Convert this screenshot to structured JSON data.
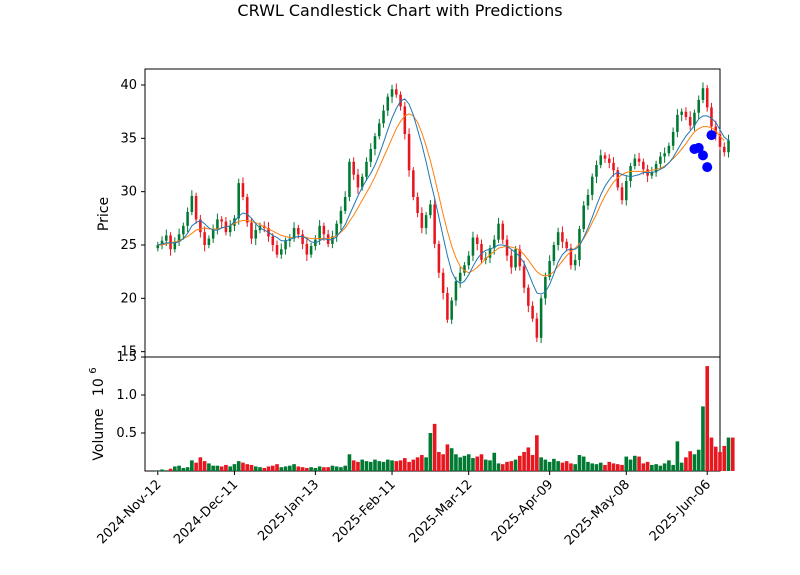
{
  "chart_data": {
    "type": "candlestick",
    "title": "CRWL Candlestick Chart with Predictions",
    "price_panel": {
      "ylabel": "Price",
      "ylim": [
        14.5,
        41.5
      ],
      "yticks": [
        15,
        20,
        25,
        30,
        35,
        40
      ],
      "up_color": "#007a33",
      "down_color": "#e8161e",
      "ma_short_color": "#1f77b4",
      "ma_long_color": "#ff7f0e",
      "prediction_color": "#0000ff"
    },
    "volume_panel": {
      "ylabel": "Volume",
      "multiplier_label": "10",
      "multiplier_exp": "6",
      "ylim": [
        0,
        1.5
      ],
      "yticks": [
        "0.5",
        "1.0",
        "1.5"
      ],
      "ytick_values": [
        0.5,
        1.0,
        1.5
      ]
    },
    "xlim": [
      -3,
      132
    ],
    "xticks": [
      {
        "label": "2024-Nov-12",
        "index": 0
      },
      {
        "label": "2024-Dec-11",
        "index": 18
      },
      {
        "label": "2025-Jan-13",
        "index": 37
      },
      {
        "label": "2025-Feb-11",
        "index": 55
      },
      {
        "label": "2025-Mar-12",
        "index": 73
      },
      {
        "label": "2025-Apr-09",
        "index": 92
      },
      {
        "label": "2025-May-08",
        "index": 110
      },
      {
        "label": "2025-Jun-06",
        "index": 129
      }
    ],
    "closes": [
      25.0,
      25.4,
      25.9,
      24.6,
      25.3,
      26.0,
      26.8,
      28.1,
      29.6,
      27.4,
      26.2,
      25.0,
      25.6,
      26.5,
      27.4,
      27.2,
      26.2,
      26.8,
      27.5,
      30.8,
      29.5,
      27.1,
      25.6,
      26.4,
      26.8,
      26.6,
      25.8,
      25.0,
      24.1,
      24.6,
      25.4,
      25.6,
      26.6,
      26.0,
      25.1,
      24.1,
      24.9,
      25.5,
      26.8,
      26.0,
      25.1,
      25.8,
      27.0,
      28.2,
      29.5,
      32.8,
      31.6,
      30.4,
      31.4,
      32.8,
      34.0,
      35.2,
      36.4,
      37.6,
      38.9,
      39.6,
      39.1,
      38.0,
      35.4,
      32.0,
      29.5,
      28.0,
      26.6,
      27.8,
      28.8,
      25.1,
      22.4,
      20.5,
      18.0,
      19.8,
      21.6,
      22.4,
      23.1,
      24.0,
      25.7,
      25.1,
      23.6,
      23.8,
      24.7,
      25.5,
      27.0,
      25.5,
      24.0,
      22.9,
      24.6,
      23.0,
      21.0,
      19.3,
      18.1,
      16.3,
      20.0,
      22.0,
      23.5,
      25.0,
      26.2,
      25.3,
      24.7,
      23.1,
      23.6,
      26.5,
      28.7,
      29.7,
      31.4,
      32.5,
      33.4,
      33.1,
      32.7,
      32.0,
      30.4,
      29.2,
      31.0,
      32.4,
      33.1,
      32.8,
      32.1,
      31.5,
      31.8,
      32.6,
      33.3,
      33.6,
      34.3,
      35.6,
      37.2,
      37.5,
      37.0,
      36.2,
      37.4,
      38.6,
      39.7,
      37.9,
      36.1,
      35.4,
      34.2,
      33.7,
      34.8
    ],
    "volumes": [
      0.0,
      0.02,
      0.01,
      0.03,
      0.06,
      0.07,
      0.04,
      0.05,
      0.14,
      0.11,
      0.18,
      0.13,
      0.1,
      0.07,
      0.07,
      0.06,
      0.08,
      0.06,
      0.09,
      0.13,
      0.11,
      0.09,
      0.08,
      0.06,
      0.05,
      0.04,
      0.06,
      0.07,
      0.09,
      0.05,
      0.06,
      0.07,
      0.09,
      0.06,
      0.05,
      0.04,
      0.05,
      0.04,
      0.06,
      0.05,
      0.05,
      0.07,
      0.06,
      0.05,
      0.07,
      0.22,
      0.14,
      0.12,
      0.15,
      0.13,
      0.12,
      0.15,
      0.13,
      0.12,
      0.15,
      0.14,
      0.13,
      0.14,
      0.17,
      0.12,
      0.15,
      0.18,
      0.21,
      0.18,
      0.5,
      0.62,
      0.25,
      0.22,
      0.35,
      0.3,
      0.22,
      0.18,
      0.2,
      0.22,
      0.17,
      0.19,
      0.22,
      0.15,
      0.14,
      0.24,
      0.1,
      0.09,
      0.12,
      0.13,
      0.15,
      0.2,
      0.25,
      0.31,
      0.21,
      0.47,
      0.18,
      0.15,
      0.12,
      0.16,
      0.13,
      0.11,
      0.13,
      0.1,
      0.09,
      0.21,
      0.19,
      0.12,
      0.1,
      0.09,
      0.11,
      0.08,
      0.12,
      0.1,
      0.09,
      0.08,
      0.19,
      0.15,
      0.2,
      0.19,
      0.1,
      0.12,
      0.08,
      0.09,
      0.07,
      0.1,
      0.14,
      0.08,
      0.39,
      0.11,
      0.18,
      0.26,
      0.22,
      0.28,
      0.85,
      1.38,
      0.44,
      0.32,
      0.25,
      0.33,
      0.44,
      0.44
    ],
    "ma_short": [
      25.0,
      25.1,
      25.2,
      25.2,
      25.2,
      25.3,
      25.6,
      26.1,
      26.8,
      27.1,
      27.3,
      27.0,
      26.6,
      26.4,
      26.4,
      26.6,
      26.7,
      26.8,
      27.2,
      27.7,
      28.0,
      27.9,
      27.5,
      27.0,
      26.6,
      26.4,
      26.2,
      25.9,
      25.7,
      25.4,
      25.4,
      25.5,
      25.7,
      25.8,
      25.8,
      25.6,
      25.3,
      25.2,
      25.4,
      25.6,
      25.5,
      25.5,
      25.8,
      26.3,
      26.9,
      27.8,
      28.7,
      29.6,
      30.4,
      31.1,
      31.7,
      32.5,
      33.5,
      34.6,
      35.8,
      36.9,
      37.8,
      38.5,
      38.7,
      38.2,
      37.2,
      35.8,
      34.4,
      32.8,
      31.0,
      29.4,
      27.6,
      25.8,
      24.0,
      22.5,
      21.7,
      21.4,
      21.6,
      22.2,
      23.0,
      23.7,
      24.2,
      24.5,
      24.6,
      24.8,
      25.0,
      25.0,
      24.9,
      24.6,
      24.3,
      23.9,
      23.3,
      22.4,
      21.4,
      20.5,
      20.4,
      20.6,
      21.3,
      22.3,
      23.4,
      24.1,
      24.5,
      24.6,
      24.6,
      24.9,
      25.7,
      26.6,
      27.6,
      28.7,
      29.7,
      30.5,
      31.1,
      31.6,
      31.8,
      31.6,
      31.5,
      31.4,
      31.5,
      31.6,
      31.8,
      31.8,
      31.8,
      31.9,
      32.1,
      32.3,
      32.7,
      33.2,
      33.9,
      34.6,
      35.2,
      35.7,
      36.2,
      36.8,
      37.1,
      37.1,
      36.9,
      36.5,
      35.8,
      35.1,
      34.8
    ],
    "ma_long": [
      25.0,
      25.0,
      25.1,
      25.2,
      25.3,
      25.4,
      25.6,
      25.8,
      26.1,
      26.4,
      26.5,
      26.6,
      26.5,
      26.5,
      26.5,
      26.6,
      26.7,
      26.8,
      27.0,
      27.2,
      27.3,
      27.3,
      27.2,
      27.1,
      26.9,
      26.7,
      26.5,
      26.3,
      26.1,
      25.9,
      25.8,
      25.7,
      25.7,
      25.8,
      25.8,
      25.7,
      25.6,
      25.6,
      25.6,
      25.6,
      25.6,
      25.7,
      25.9,
      26.2,
      26.6,
      27.2,
      27.8,
      28.5,
      29.2,
      29.9,
      30.6,
      31.4,
      32.3,
      33.2,
      34.1,
      35.0,
      35.9,
      36.6,
      37.1,
      37.3,
      37.1,
      36.5,
      35.5,
      34.3,
      32.9,
      31.3,
      29.6,
      27.9,
      26.3,
      24.9,
      23.8,
      23.0,
      22.6,
      22.4,
      22.6,
      22.9,
      23.3,
      23.7,
      24.1,
      24.4,
      24.7,
      24.8,
      24.9,
      24.8,
      24.7,
      24.5,
      24.1,
      23.6,
      23.0,
      22.5,
      22.2,
      22.1,
      22.2,
      22.5,
      23.0,
      23.5,
      24.0,
      24.4,
      24.7,
      25.1,
      25.6,
      26.3,
      27.1,
      27.9,
      28.8,
      29.6,
      30.3,
      30.9,
      31.3,
      31.6,
      31.8,
      31.9,
      31.9,
      31.9,
      31.9,
      31.9,
      32.0,
      32.1,
      32.2,
      32.4,
      32.7,
      33.1,
      33.5,
      34.0,
      34.5,
      35.1,
      35.6,
      35.9,
      36.1,
      36.1,
      36.0,
      35.7,
      35.2,
      34.8
    ],
    "predictions": [
      {
        "index": 126,
        "value": 34.0
      },
      {
        "index": 127,
        "value": 34.1
      },
      {
        "index": 128,
        "value": 33.4
      },
      {
        "index": 129,
        "value": 32.3
      },
      {
        "index": 130,
        "value": 35.3
      }
    ]
  }
}
